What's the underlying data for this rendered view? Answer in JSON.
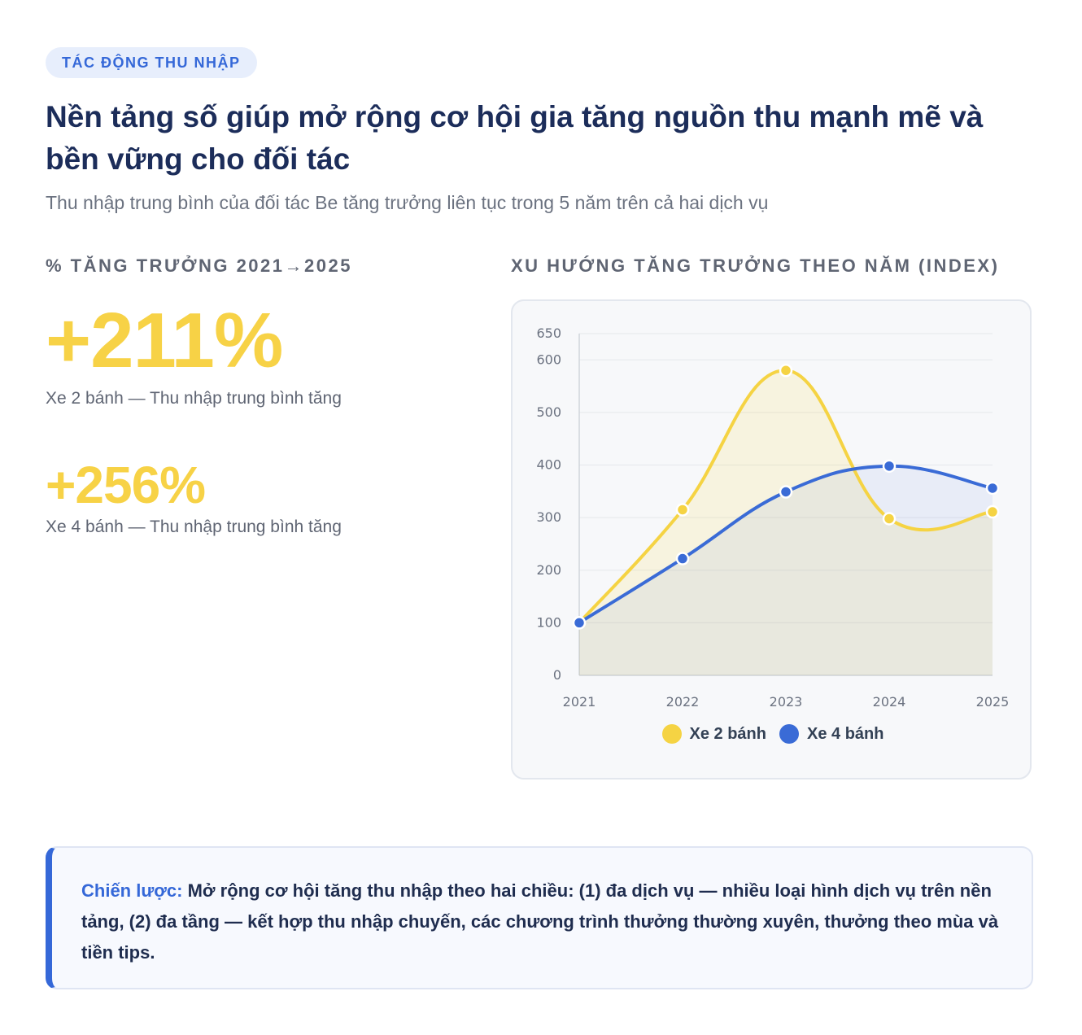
{
  "header": {
    "tag": "TÁC ĐỘNG THU NHẬP",
    "title": "Nền tảng số giúp mở rộng cơ hội gia tăng nguồn thu mạnh mẽ và bền vững cho đối tác",
    "subtitle": "Thu nhập trung bình của đối tác Be tăng trưởng liên tục trong 5 năm trên cả hai dịch vụ"
  },
  "stats": {
    "label": "% TĂNG TRƯỞNG 2021→2025",
    "two_wheel": {
      "value": "+211%",
      "caption": "Xe 2 bánh — Thu nhập trung bình tăng"
    },
    "four_wheel": {
      "value": "+256%",
      "caption": "Xe 4 bánh — Thu nhập trung bình tăng"
    }
  },
  "chart_section": {
    "label": "XU HƯỚNG TĂNG TRƯỞNG THEO NĂM (INDEX)"
  },
  "chart_data": {
    "type": "line",
    "x": [
      "2021",
      "2022",
      "2023",
      "2024",
      "2025"
    ],
    "series": [
      {
        "name": "Xe 2 bánh",
        "values": [
          100,
          315,
          580,
          298,
          311
        ],
        "color": "#f5d343",
        "fill": true
      },
      {
        "name": "Xe 4 bánh",
        "values": [
          100,
          222,
          349,
          398,
          356
        ],
        "color": "#3a6bd6",
        "fill": true
      }
    ],
    "ylim": [
      0,
      650
    ],
    "yticks": [
      0,
      100,
      200,
      300,
      400,
      500,
      600,
      650
    ],
    "grid": true,
    "smooth": true,
    "legend": "bottom"
  },
  "strategy": {
    "keyword": "Chiến lược:",
    "text": " Mở rộng cơ hội tăng thu nhập theo hai chiều: (1) đa dịch vụ — nhiều loại hình dịch vụ trên nền tảng, (2) đa tầng — kết hợp thu nhập chuyến, các chương trình thưởng thường xuyên, thưởng theo mùa và tiền tips."
  }
}
